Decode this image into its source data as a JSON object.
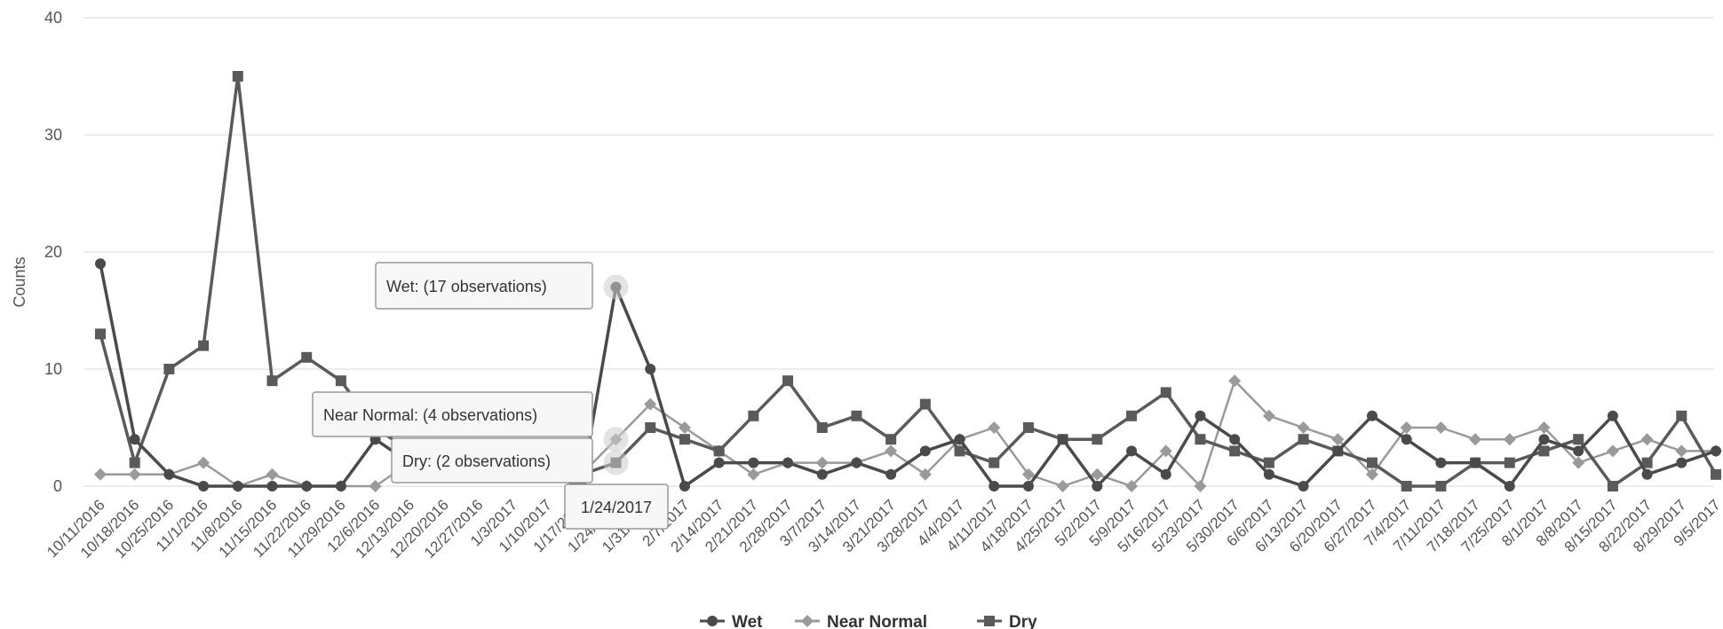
{
  "chart_data": {
    "type": "line",
    "title": "",
    "xlabel": "",
    "ylabel": "Counts",
    "ylim": [
      0,
      40
    ],
    "yticks": [
      0,
      10,
      20,
      30,
      40
    ],
    "grid": true,
    "legend_position": "bottom-center",
    "categories": [
      "10/11/2016",
      "10/18/2016",
      "10/25/2016",
      "11/1/2016",
      "11/8/2016",
      "11/15/2016",
      "11/22/2016",
      "11/29/2016",
      "12/6/2016",
      "12/13/2016",
      "12/20/2016",
      "12/27/2016",
      "1/3/2017",
      "1/10/2017",
      "1/17/2017",
      "1/24/2017",
      "1/31/2017",
      "2/7/2017",
      "2/14/2017",
      "2/21/2017",
      "2/28/2017",
      "3/7/2017",
      "3/14/2017",
      "3/21/2017",
      "3/28/2017",
      "4/4/2017",
      "4/11/2017",
      "4/18/2017",
      "4/25/2017",
      "5/2/2017",
      "5/9/2017",
      "5/16/2017",
      "5/23/2017",
      "5/30/2017",
      "6/6/2017",
      "6/13/2017",
      "6/20/2017",
      "6/27/2017",
      "7/4/2017",
      "7/11/2017",
      "7/18/2017",
      "7/25/2017",
      "8/1/2017",
      "8/8/2017",
      "8/15/2017",
      "8/22/2017",
      "8/29/2017",
      "9/5/2017"
    ],
    "series": [
      {
        "name": "Wet",
        "marker": "circle",
        "color": "#4a4a4a",
        "values": [
          19,
          4,
          1,
          0,
          0,
          0,
          0,
          0,
          4,
          2,
          1,
          1,
          2,
          1,
          0,
          17,
          10,
          0,
          2,
          2,
          2,
          1,
          2,
          1,
          3,
          4,
          0,
          0,
          4,
          0,
          3,
          1,
          6,
          4,
          1,
          0,
          3,
          6,
          4,
          2,
          2,
          0,
          4,
          3,
          6,
          1,
          2,
          3
        ]
      },
      {
        "name": "Near Normal",
        "marker": "diamond",
        "color": "#9a9a9a",
        "values": [
          1,
          1,
          1,
          2,
          0,
          1,
          0,
          0,
          0,
          2,
          1,
          1,
          3,
          2,
          1,
          4,
          7,
          5,
          3,
          1,
          2,
          2,
          2,
          3,
          1,
          4,
          5,
          1,
          0,
          1,
          0,
          3,
          0,
          9,
          6,
          5,
          4,
          1,
          5,
          5,
          4,
          4,
          5,
          2,
          3,
          4,
          3,
          3
        ]
      },
      {
        "name": "Dry",
        "marker": "square",
        "color": "#5a5a5a",
        "values": [
          13,
          2,
          10,
          12,
          35,
          9,
          11,
          9,
          5,
          3,
          2,
          2,
          2,
          1,
          1,
          2,
          5,
          4,
          3,
          6,
          9,
          5,
          6,
          4,
          7,
          3,
          2,
          5,
          4,
          4,
          6,
          8,
          4,
          3,
          2,
          4,
          3,
          2,
          0,
          0,
          2,
          2,
          3,
          4,
          0,
          2,
          6,
          1
        ]
      }
    ],
    "tooltip": {
      "category": "1/24/2017",
      "lines": [
        "Wet: (17 observations)",
        "Near Normal: (4 observations)",
        "Dry: (2 observations)"
      ]
    }
  }
}
